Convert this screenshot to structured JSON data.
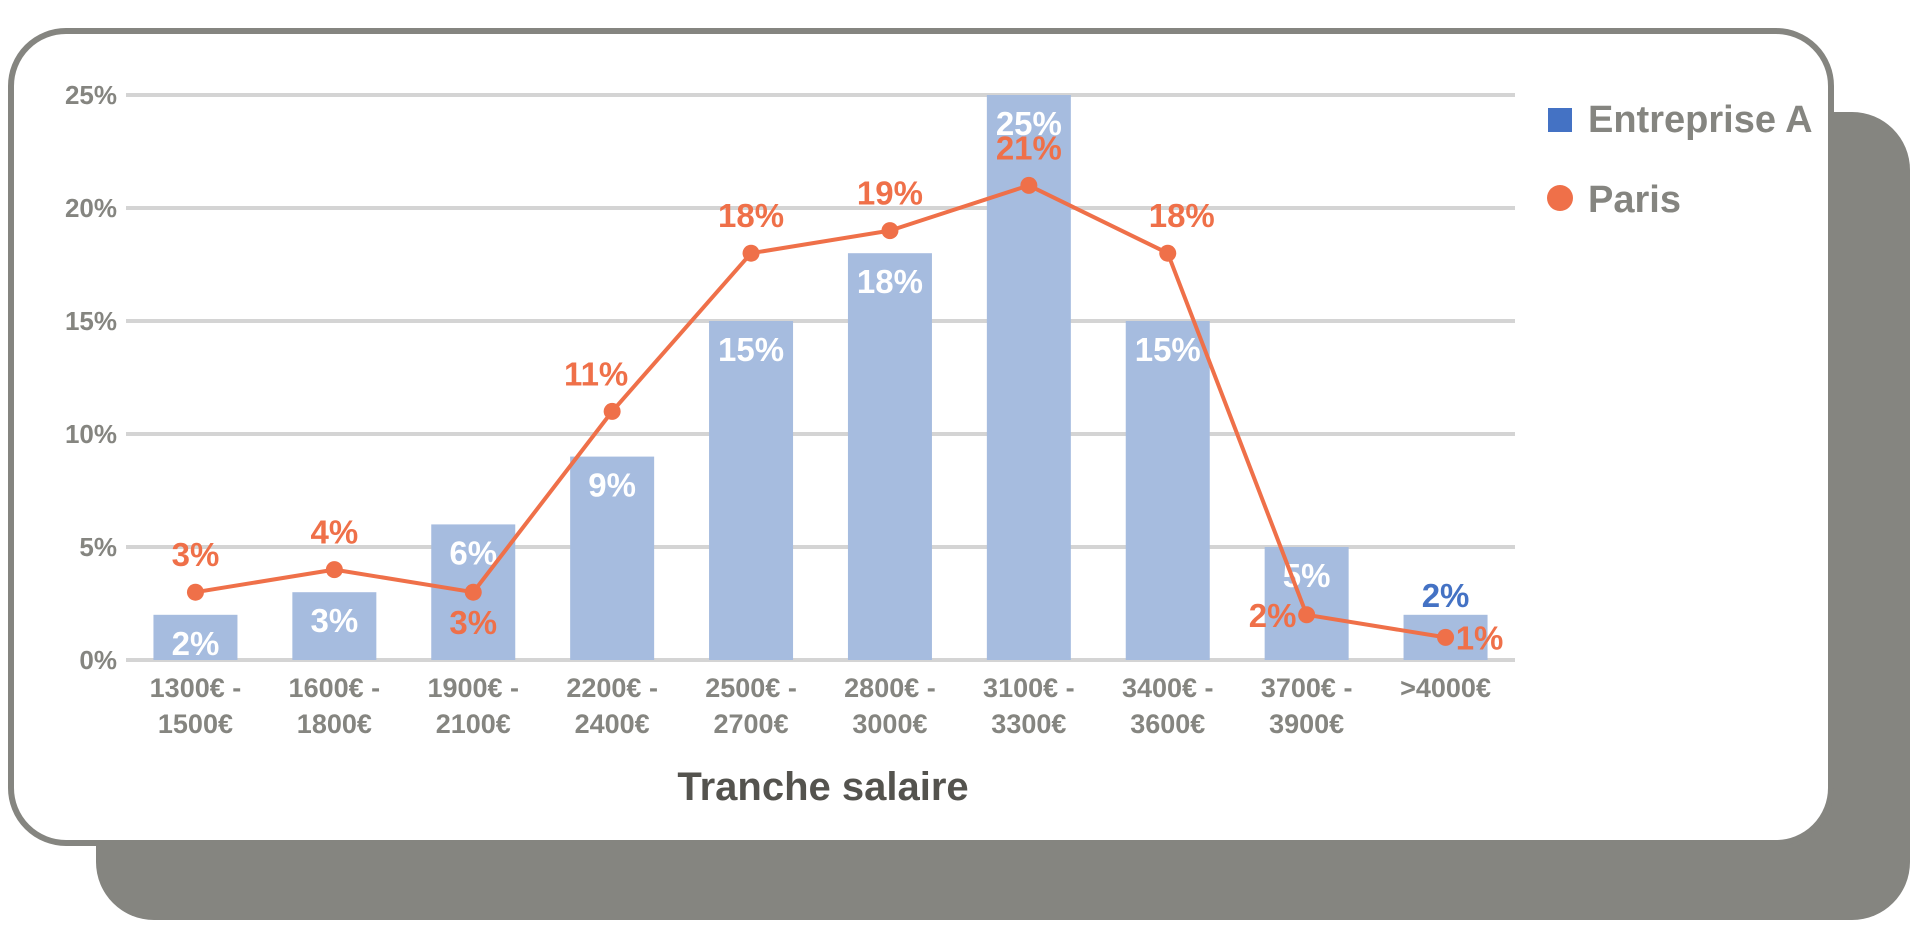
{
  "chart_data": {
    "type": "bar",
    "categories": [
      [
        "1300€ -",
        "1500€"
      ],
      [
        "1600€ -",
        "1800€"
      ],
      [
        "1900€ -",
        "2100€"
      ],
      [
        "2200€ -",
        "2400€"
      ],
      [
        "2500€ -",
        "2700€"
      ],
      [
        "2800€ -",
        "3000€"
      ],
      [
        "3100€ -",
        "3300€"
      ],
      [
        "3400€ -",
        "3600€"
      ],
      [
        "3700€ -",
        "3900€"
      ],
      [
        ">4000€"
      ]
    ],
    "xlabel": "Tranche salaire",
    "ylim": [
      0,
      25
    ],
    "yticks": [
      0,
      5,
      10,
      15,
      20,
      25
    ],
    "ytick_labels": [
      "0%",
      "5%",
      "10%",
      "15%",
      "20%",
      "25%"
    ],
    "grid": true,
    "legend_position": "top-right",
    "series": [
      {
        "name": "Entreprise A",
        "kind": "bar",
        "color": "#4472c4",
        "values": [
          2,
          3,
          6,
          9,
          15,
          18,
          25,
          15,
          5,
          2
        ],
        "labels": [
          "2%",
          "3%",
          "6%",
          "9%",
          "15%",
          "18%",
          "25%",
          "15%",
          "5%",
          "2%"
        ]
      },
      {
        "name": "Paris",
        "kind": "line",
        "color": "#ef7049",
        "values": [
          3,
          4,
          3,
          11,
          18,
          19,
          21,
          18,
          2,
          1
        ],
        "labels": [
          "3%",
          "4%",
          "3%",
          "11%",
          "18%",
          "19%",
          "21%",
          "18%",
          "2%",
          "1%"
        ]
      }
    ]
  }
}
